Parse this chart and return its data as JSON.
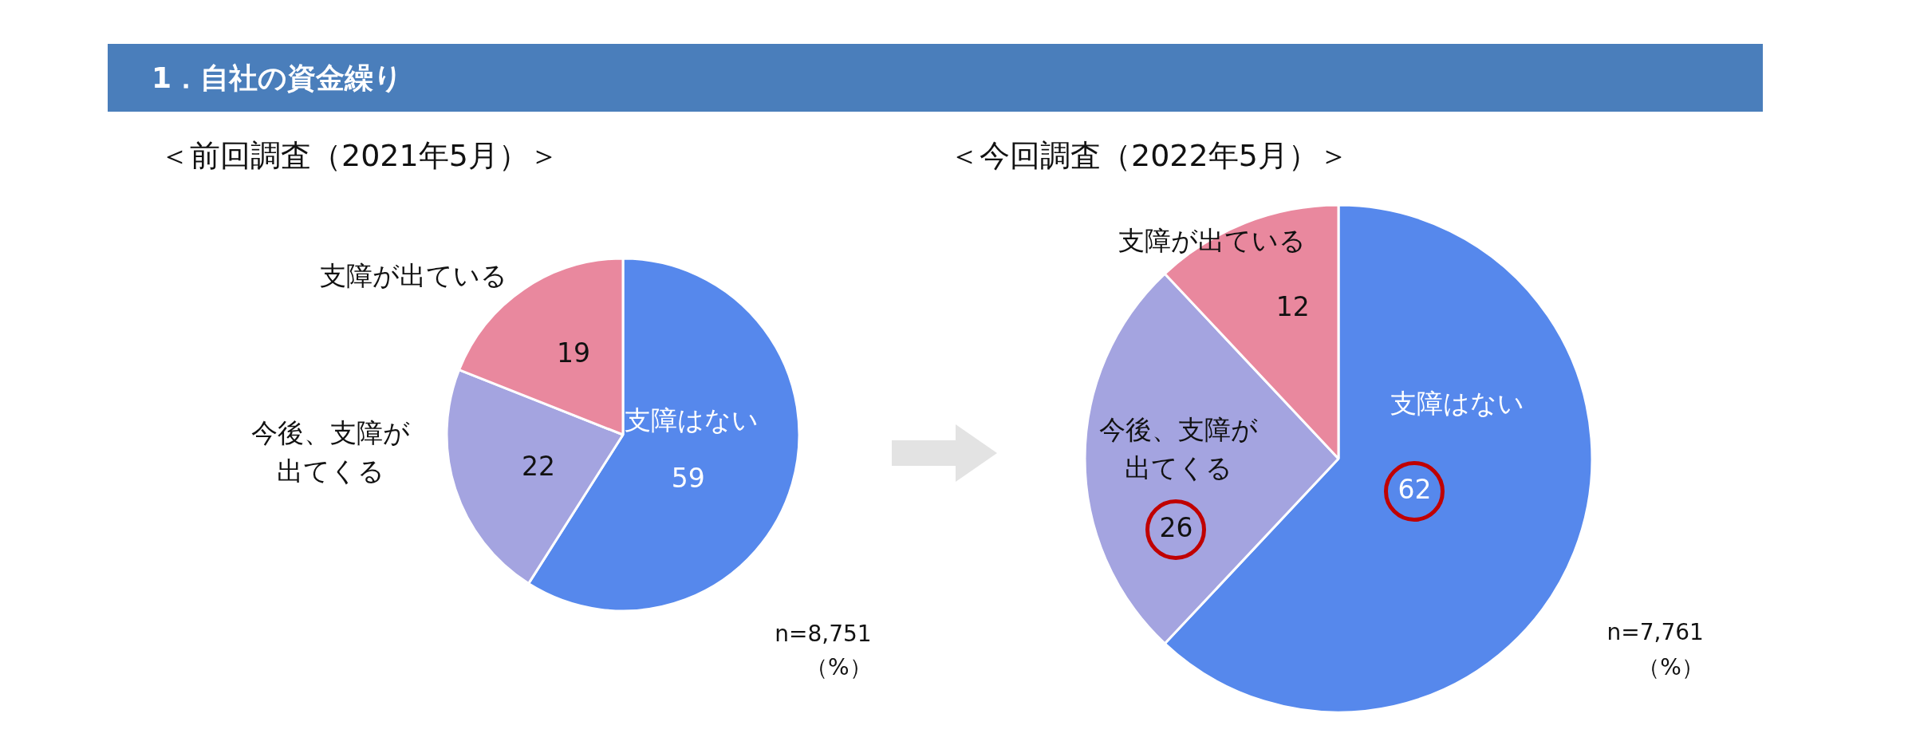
{
  "chart_data": [
    {
      "type": "pie",
      "title": "1．自社の資金繰り",
      "subtitle": "＜前回調査（2021年5月）＞",
      "categories": [
        "支障はない",
        "今後、支障が出てくる",
        "支障が出ている"
      ],
      "values": [
        59,
        22,
        19
      ],
      "colors": [
        "#5688ec",
        "#a4a4e0",
        "#e9889e"
      ],
      "data_labels": true,
      "legend": false,
      "annotations": [
        "n=8,751",
        "（%）"
      ]
    },
    {
      "type": "pie",
      "title": "＜今回調査（2022年5月）＞",
      "categories": [
        "支障はない",
        "今後、支障が出てくる",
        "支障が出ている"
      ],
      "values": [
        62,
        26,
        12
      ],
      "colors": [
        "#5688ec",
        "#a4a4e0",
        "#e9889e"
      ],
      "data_labels": true,
      "legend": false,
      "annotations": [
        "n=7,761",
        "（%）"
      ]
    }
  ]
}
